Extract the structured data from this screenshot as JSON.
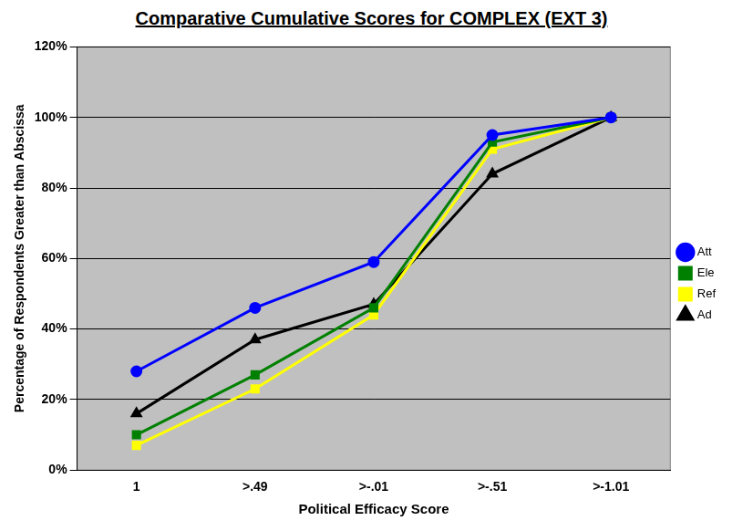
{
  "chart_data": {
    "type": "line",
    "title": "Comparative Cumulative Scores for COMPLEX (EXT 3)",
    "x_label": "Political Efficacy Score",
    "y_label": "Percentage of Respondents Greater than Abscissa",
    "categories": [
      "1",
      ">.49",
      ">-.01",
      ">-.51",
      ">-1.01"
    ],
    "series": [
      {
        "name": "Att",
        "color": "#0000ff",
        "marker": "circle",
        "values": [
          28,
          46,
          59,
          95,
          100
        ]
      },
      {
        "name": "Ele",
        "color": "#008000",
        "marker": "square",
        "values": [
          10,
          27,
          46,
          93,
          100
        ]
      },
      {
        "name": "Ref",
        "color": "#ffff00",
        "marker": "square",
        "values": [
          7,
          23,
          44,
          91,
          100
        ]
      },
      {
        "name": "Ad",
        "color": "#000000",
        "marker": "triangle",
        "values": [
          16,
          37,
          47,
          84,
          100
        ]
      }
    ],
    "ylim": [
      0,
      120
    ],
    "yticks": [
      {
        "value": 0,
        "label": "0%"
      },
      {
        "value": 20,
        "label": "20%"
      },
      {
        "value": 40,
        "label": "40%"
      },
      {
        "value": 60,
        "label": "60%"
      },
      {
        "value": 80,
        "label": "80%"
      },
      {
        "value": 100,
        "label": "100%"
      },
      {
        "value": 120,
        "label": "120%"
      }
    ],
    "grid": true,
    "legend": "right"
  }
}
